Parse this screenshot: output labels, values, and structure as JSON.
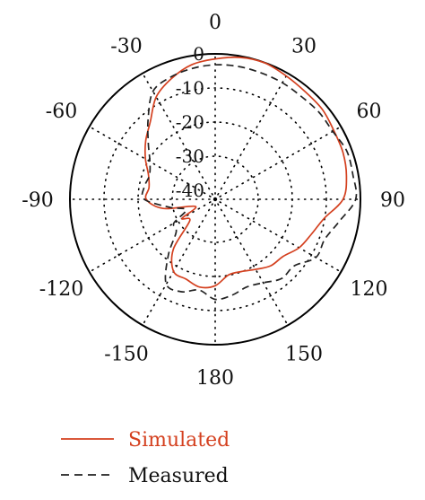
{
  "chart_data": {
    "type": "polar-line",
    "title": "",
    "angle_unit": "deg",
    "zero_direction": "top",
    "rotation": "clockwise",
    "angle_tick_labels": [
      "0",
      "30",
      "60",
      "90",
      "120",
      "150",
      "180",
      "-150",
      "-120",
      "-90",
      "-60",
      "-30"
    ],
    "angle_tick_values": [
      0,
      30,
      60,
      90,
      120,
      150,
      180,
      -150,
      -120,
      -90,
      -60,
      -30
    ],
    "radial_range": [
      -40,
      0
    ],
    "radial_tick_labels": [
      "0",
      "-10",
      "-20",
      "-30",
      "-40"
    ],
    "radial_tick_values": [
      0,
      -10,
      -20,
      -30,
      -40
    ],
    "grid": true,
    "legend_position": "bottom",
    "series": [
      {
        "name": "Simulated",
        "color": "#d4401f",
        "dash": "solid",
        "angles": [
          -60,
          -50,
          -40,
          -30,
          -20,
          -10,
          0,
          10,
          20,
          30,
          40,
          50,
          60,
          70,
          80,
          90,
          100,
          110,
          120,
          130,
          140,
          150,
          160,
          170,
          180,
          -170,
          -160,
          -150,
          -140,
          -130,
          -120,
          -110,
          -100,
          -90,
          -80,
          -70
        ],
        "values": [
          -19,
          -16,
          -13,
          -8,
          -5,
          -2.6,
          -1.5,
          -0.4,
          -0.1,
          -0.9,
          -1.5,
          -1.6,
          -2.4,
          -2.7,
          -3.5,
          -5.1,
          -10.2,
          -12.6,
          -14.2,
          -16.6,
          -17.2,
          -18.9,
          -20.1,
          -20.1,
          -17.3,
          -16.5,
          -17.7,
          -18.2,
          -23.5,
          -32.9,
          -31.4,
          -36.5,
          -27.1,
          -22.4,
          -22.9,
          -21.8
        ]
      },
      {
        "name": "Measured",
        "color": "#222222",
        "dash": "dashed",
        "angles": [
          -60,
          -50,
          -40,
          -30,
          -20,
          -10,
          0,
          10,
          20,
          30,
          40,
          50,
          60,
          70,
          80,
          90,
          100,
          110,
          120,
          130,
          140,
          150,
          160,
          170,
          180,
          -170,
          -160,
          -150,
          -140,
          -130,
          -120,
          -110,
          -100,
          -90,
          -80,
          -70
        ],
        "values": [
          -20.5,
          -17,
          -12,
          -6.1,
          -4.5,
          -3.7,
          -3.2,
          -3.1,
          -3.2,
          -3.2,
          -3.3,
          -2.9,
          -2.8,
          -1.5,
          -1.6,
          -1.4,
          -5.6,
          -8.4,
          -8.5,
          -12.3,
          -12.3,
          -14.4,
          -15.3,
          -14.1,
          -13.3,
          -15.6,
          -13.8,
          -13.9,
          -21.2,
          -27.7,
          -28.6,
          -33.5,
          -29.1,
          -21.8,
          -21.5,
          -22.1
        ]
      }
    ]
  }
}
